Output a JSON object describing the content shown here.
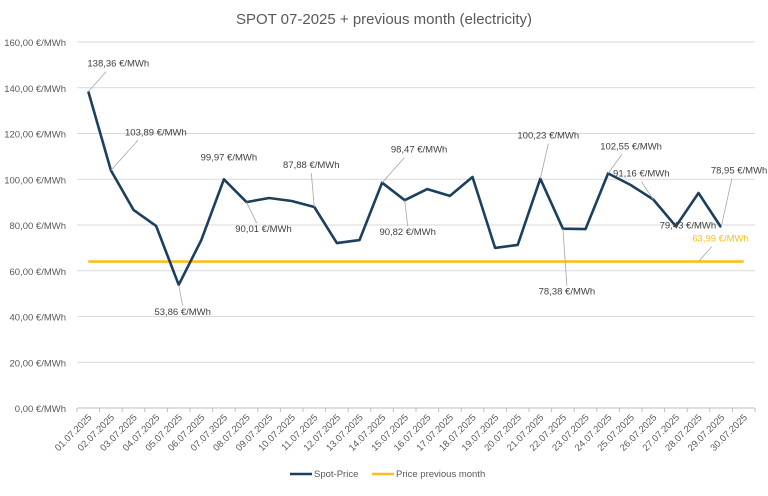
{
  "chart_data": {
    "type": "line",
    "title": "SPOT 07-2025 + previous month (electricity)",
    "xlabel": "",
    "ylabel": "",
    "ylim": [
      0,
      160
    ],
    "yticks": [
      0,
      20,
      40,
      60,
      80,
      100,
      120,
      140,
      160
    ],
    "ytick_labels": [
      "0,00 €/MWh",
      "20,00 €/MWh",
      "40,00 €/MWh",
      "60,00 €/MWh",
      "80,00 €/MWh",
      "100,00 €/MWh",
      "120,00 €/MWh",
      "140,00 €/MWh",
      "160,00 €/MWh"
    ],
    "grid": true,
    "legend_position": "bottom",
    "categories": [
      "01.07.2025",
      "02.07.2025",
      "03.07.2025",
      "04.07.2025",
      "05.07.2025",
      "06.07.2025",
      "07.07.2025",
      "08.07.2025",
      "09.07.2025",
      "10.07.2025",
      "11.07.2025",
      "12.07.2025",
      "13.07.2025",
      "14.07.2025",
      "15.07.2025",
      "16.07.2025",
      "17.07.2025",
      "18.07.2025",
      "19.07.2025",
      "20.07.2025",
      "21.07.2025",
      "22.07.2025",
      "23.07.2025",
      "24.07.2025",
      "25.07.2025",
      "26.07.2025",
      "27.07.2025",
      "28.07.2025",
      "29.07.2025",
      "30.07.2025"
    ],
    "series": [
      {
        "name": "Spot-Price",
        "color": "#1b3f5e",
        "values": [
          138.36,
          103.89,
          86.6,
          79.6,
          53.86,
          73.4,
          99.97,
          90.01,
          91.8,
          90.5,
          87.88,
          72.1,
          73.4,
          98.47,
          90.82,
          95.7,
          92.7,
          101.0,
          70.0,
          71.3,
          100.23,
          78.38,
          78.2,
          102.55,
          97.5,
          91.16,
          79.43,
          94.0,
          78.95,
          null
        ]
      },
      {
        "name": "Price previous month",
        "color": "#fbbf1c",
        "values": [
          63.99,
          63.99,
          63.99,
          63.99,
          63.99,
          63.99,
          63.99,
          63.99,
          63.99,
          63.99,
          63.99,
          63.99,
          63.99,
          63.99,
          63.99,
          63.99,
          63.99,
          63.99,
          63.99,
          63.99,
          63.99,
          63.99,
          63.99,
          63.99,
          63.99,
          63.99,
          63.99,
          63.99,
          63.99,
          63.99
        ]
      }
    ],
    "annotations": [
      {
        "series": 0,
        "index": 0,
        "text": "138,36 €/MWh"
      },
      {
        "series": 0,
        "index": 1,
        "text": "103,89 €/MWh"
      },
      {
        "series": 0,
        "index": 4,
        "text": "53,86 €/MWh"
      },
      {
        "series": 0,
        "index": 6,
        "text": "99,97 €/MWh"
      },
      {
        "series": 0,
        "index": 7,
        "text": "90,01 €/MWh"
      },
      {
        "series": 0,
        "index": 10,
        "text": "87,88 €/MWh"
      },
      {
        "series": 0,
        "index": 13,
        "text": "98,47 €/MWh"
      },
      {
        "series": 0,
        "index": 14,
        "text": "90,82 €/MWh"
      },
      {
        "series": 0,
        "index": 20,
        "text": "100,23 €/MWh"
      },
      {
        "series": 0,
        "index": 21,
        "text": "78,38 €/MWh"
      },
      {
        "series": 0,
        "index": 23,
        "text": "102,55 €/MWh"
      },
      {
        "series": 0,
        "index": 25,
        "text": "91,16 €/MWh"
      },
      {
        "series": 0,
        "index": 26,
        "text": "79,43 €/MWh"
      },
      {
        "series": 0,
        "index": 28,
        "text": "78,95 €/MWh"
      },
      {
        "series": 1,
        "index": 27,
        "text": "63,99 €/MWh"
      }
    ]
  }
}
